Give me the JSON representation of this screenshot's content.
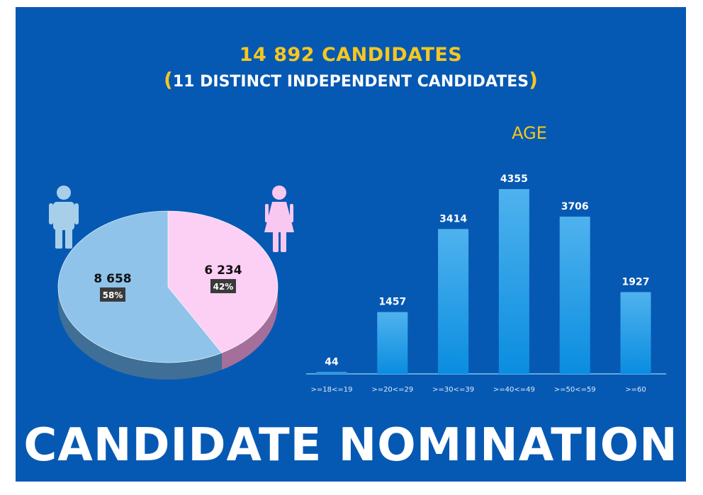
{
  "header": {
    "headline": "14 892 CANDIDATES",
    "subline_open": "(",
    "subline_text": "11 DISTINCT INDEPENDENT CANDIDATES",
    "subline_close": ")"
  },
  "footer": {
    "title": "CANDIDATE NOMINATION"
  },
  "colors": {
    "background": "#0659b3",
    "accent": "#f7c61f",
    "male": "#8fc3ea",
    "female": "#fcd0f5",
    "bar": "#1d9be8"
  },
  "icons": {
    "male": "male-person-icon",
    "female": "female-person-icon"
  },
  "chart_data": [
    {
      "type": "pie",
      "title": "",
      "slices": [
        {
          "label": "8 658",
          "percent": "58%",
          "value": 8658,
          "color": "#8fc3ea"
        },
        {
          "label": "6 234",
          "percent": "42%",
          "value": 6234,
          "color": "#fcd0f5"
        }
      ]
    },
    {
      "type": "bar",
      "title": "AGE",
      "categories": [
        ">=18<=19",
        ">=20<=29",
        ">=30<=39",
        ">=40<=49",
        ">=50<=59",
        ">=60"
      ],
      "values": [
        44,
        1457,
        3414,
        4355,
        3706,
        1927
      ],
      "value_labels": [
        "44",
        "1457",
        "3414",
        "4355",
        "3706",
        "1927"
      ],
      "ylim": [
        0,
        4500
      ],
      "grid": false,
      "legend": "none"
    }
  ]
}
